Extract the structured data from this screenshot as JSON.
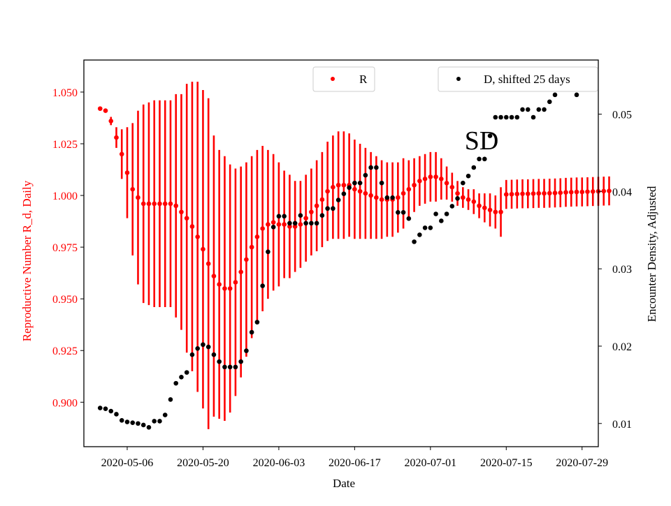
{
  "chart_data": {
    "type": "scatter",
    "xlabel": "Date",
    "ylabel_left": "Reproductive Number R_d, Daily",
    "ylabel_right": "Encounter Density, Adjusted",
    "annotation": "SD",
    "x_ticks": [
      "2020-05-06",
      "2020-05-20",
      "2020-06-03",
      "2020-06-17",
      "2020-07-01",
      "2020-07-15",
      "2020-07-29"
    ],
    "y_left_ticks": [
      "0.900",
      "0.925",
      "0.950",
      "0.975",
      "1.000",
      "1.025",
      "1.050"
    ],
    "y_right_ticks": [
      "0.01",
      "0.02",
      "0.03",
      "0.04",
      "0.05"
    ],
    "x_range": [
      "2020-04-28",
      "2020-08-01"
    ],
    "y_left_range": [
      0.8785,
      1.0655
    ],
    "y_right_range": [
      0.007,
      0.057
    ],
    "grid": false,
    "legend_left": {
      "label": "R",
      "placement": "top-center"
    },
    "legend_right": {
      "label": "D, shifted 25 days",
      "placement": "top-right"
    },
    "colors": {
      "R": "#ff0000",
      "D": "#000000"
    },
    "series": [
      {
        "name": "R",
        "axis": "left",
        "start_date": "2020-05-01",
        "values": [
          1.042,
          1.041,
          1.036,
          1.028,
          1.02,
          1.011,
          1.003,
          0.999,
          0.996,
          0.996,
          0.996,
          0.996,
          0.996,
          0.996,
          0.995,
          0.992,
          0.989,
          0.985,
          0.98,
          0.974,
          0.967,
          0.961,
          0.957,
          0.955,
          0.955,
          0.958,
          0.963,
          0.969,
          0.975,
          0.98,
          0.984,
          0.986,
          0.987,
          0.986,
          0.986,
          0.985,
          0.985,
          0.986,
          0.989,
          0.992,
          0.995,
          0.998,
          1.002,
          1.004,
          1.005,
          1.005,
          1.005,
          1.003,
          1.002,
          1.001,
          1.0,
          0.999,
          0.998,
          0.998,
          0.998,
          0.999,
          1.001,
          1.003,
          1.005,
          1.007,
          1.008,
          1.009,
          1.009,
          1.008,
          1.006,
          1.004,
          1.001,
          0.999,
          0.998,
          0.997,
          0.995,
          0.994,
          0.993,
          0.992,
          0.992
        ],
        "err": [
          0.001,
          0.001,
          0.002,
          0.005,
          0.012,
          0.022,
          0.032,
          0.042,
          0.048,
          0.049,
          0.05,
          0.05,
          0.05,
          0.05,
          0.054,
          0.057,
          0.065,
          0.07,
          0.075,
          0.077,
          0.08,
          0.068,
          0.065,
          0.064,
          0.06,
          0.055,
          0.051,
          0.047,
          0.044,
          0.042,
          0.04,
          0.036,
          0.033,
          0.03,
          0.026,
          0.025,
          0.022,
          0.021,
          0.021,
          0.021,
          0.022,
          0.023,
          0.024,
          0.025,
          0.026,
          0.026,
          0.025,
          0.024,
          0.023,
          0.022,
          0.021,
          0.02,
          0.019,
          0.018,
          0.018,
          0.017,
          0.017,
          0.014,
          0.013,
          0.012,
          0.012,
          0.012,
          0.012,
          0.01,
          0.008,
          0.007,
          0.006,
          0.005,
          0.005,
          0.006,
          0.006,
          0.007,
          0.008,
          0.008,
          0.012
        ]
      },
      {
        "name": "R",
        "axis": "left",
        "start_date": "2020-07-15",
        "values": [
          1.0005,
          1.0006,
          1.0007,
          1.0008,
          1.0008,
          1.0009,
          1.001,
          1.001,
          1.0011,
          1.0012,
          1.0013,
          1.0015,
          1.0016,
          1.0017,
          1.0017,
          1.0018,
          1.0019,
          1.002,
          1.0021,
          1.0022
        ],
        "err": [
          0.007,
          0.007,
          0.007,
          0.007,
          0.007,
          0.007,
          0.007,
          0.007,
          0.007,
          0.007,
          0.007,
          0.007,
          0.007,
          0.007,
          0.007,
          0.007,
          0.007,
          0.007,
          0.007,
          0.007
        ]
      },
      {
        "name": "D, shifted 25 days",
        "axis": "right",
        "start_date": "2020-05-01",
        "values": [
          0.012,
          0.0119,
          0.0116,
          0.0112,
          0.0104,
          0.0102,
          0.0101,
          0.01,
          0.0098,
          0.0095,
          0.0103,
          0.0103,
          0.0111,
          0.0131,
          0.0152,
          0.016,
          0.0166,
          0.0189,
          0.0197,
          0.0202,
          0.0199,
          0.0189,
          0.018,
          0.0173,
          0.0173,
          0.0173,
          0.018,
          0.0194,
          0.0218,
          0.0231,
          0.0278,
          0.0322,
          0.0354,
          0.0368,
          0.0368,
          0.0359,
          0.0359,
          0.0369,
          0.0359,
          0.0359,
          0.0359,
          0.0369,
          0.0378,
          0.0378,
          0.0389,
          0.0397,
          0.0405,
          0.0411,
          0.0411,
          0.0421,
          0.0431,
          0.0431,
          0.0411,
          0.0392,
          0.0392,
          0.0373,
          0.0373,
          0.0365,
          0.0335,
          0.0344,
          0.0353,
          0.0353,
          0.0371,
          0.0362,
          0.0371,
          0.0381,
          0.0391,
          0.0411,
          0.042,
          0.0431,
          0.0442,
          0.0442,
          0.0472,
          0.0496,
          0.0496,
          0.0496,
          0.0496,
          0.0496,
          0.0506,
          0.0506,
          0.0496,
          0.0506,
          0.0506,
          0.0516,
          0.0525,
          0.0535,
          0.0545,
          0.0535,
          0.0525,
          0.0545,
          0.0555
        ]
      }
    ]
  }
}
